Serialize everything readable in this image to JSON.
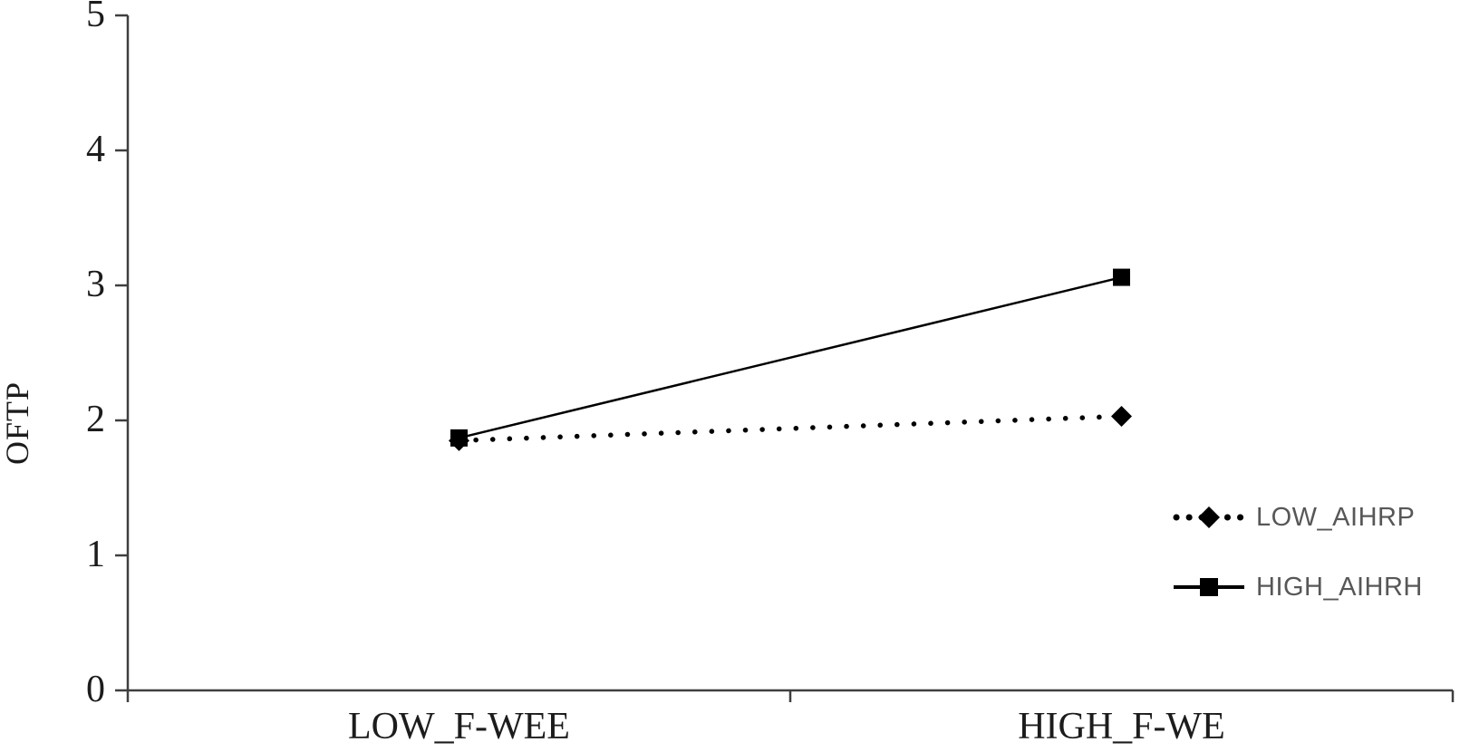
{
  "chart_data": {
    "type": "line",
    "title": "",
    "xlabel": "",
    "ylabel": "OFTP",
    "categories": [
      "LOW_F-WEE",
      "HIGH_F-WE"
    ],
    "y_ticks": [
      "0",
      "1",
      "2",
      "3",
      "4",
      "5"
    ],
    "ylim": [
      0,
      5
    ],
    "grid": false,
    "legend_position": "right-middle",
    "legend_border": false,
    "series": [
      {
        "name": "LOW_AIHRP",
        "values": [
          1.85,
          2.03
        ],
        "line_style": "dotted",
        "marker": "diamond",
        "color": "#000000"
      },
      {
        "name": "HIGH_AIHRH",
        "values": [
          1.87,
          3.06
        ],
        "line_style": "solid",
        "marker": "square",
        "color": "#000000"
      }
    ]
  },
  "colors": {
    "background": "#ffffff",
    "axis": "#3f3f3f",
    "tick_label": "#1c1c1c",
    "legend_text": "#575757",
    "series": "#000000"
  }
}
